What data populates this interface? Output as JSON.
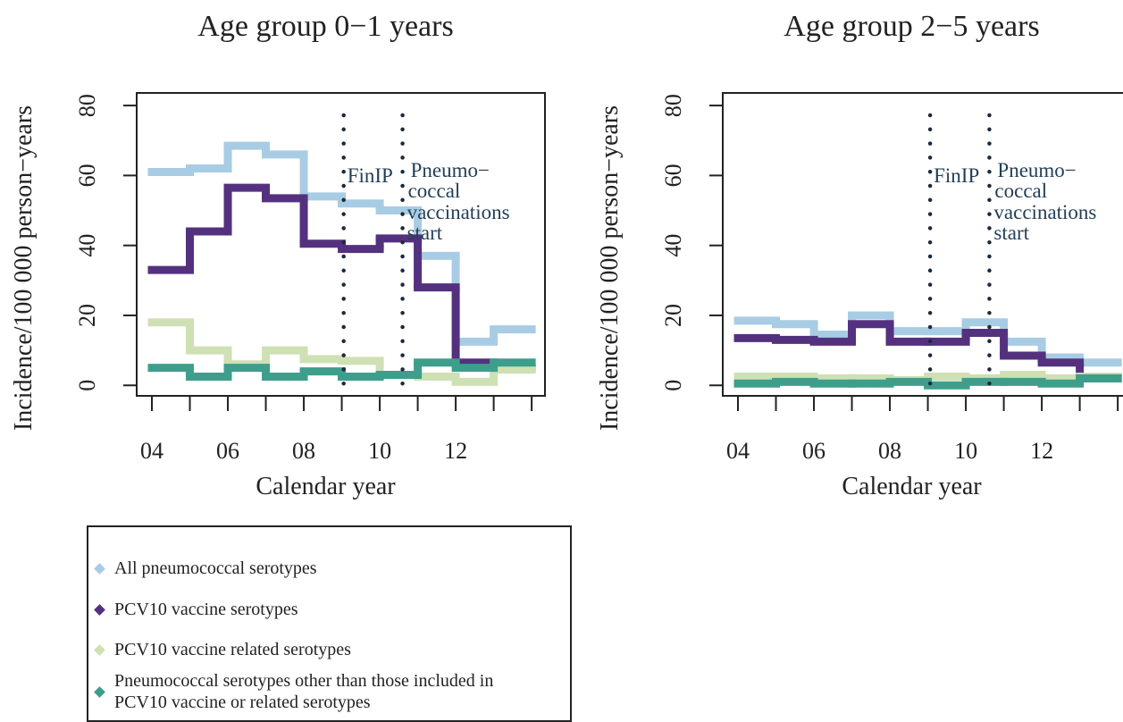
{
  "chart_data": [
    {
      "type": "step",
      "title": "Age group 0−1 years",
      "x_label": "Calendar year",
      "y_label": "Incidence/100 000 person−years",
      "x": [
        2004,
        2005,
        2006,
        2007,
        2008,
        2009,
        2010,
        2011,
        2012,
        2013
      ],
      "series": [
        {
          "name": "All pneumococcal serotypes",
          "color": "#a8cce4",
          "values": [
            61,
            62,
            68.5,
            66,
            54,
            52,
            50,
            37,
            12.5,
            16
          ]
        },
        {
          "name": "PCV10 vaccine serotypes",
          "color": "#54317f",
          "values": [
            33,
            44,
            56.5,
            53.5,
            40.5,
            39,
            42,
            28,
            6.5,
            5
          ]
        },
        {
          "name": "PCV10 vaccine related serotypes",
          "color": "#cfe0b4",
          "values": [
            18,
            10,
            6,
            10,
            7.5,
            7,
            3,
            2.5,
            1,
            4.5
          ]
        },
        {
          "name": "Pneumococcal serotypes other than those included in PCV10 vaccine or related serotypes",
          "color": "#3e9e8c",
          "values": [
            5,
            2.5,
            5,
            2.5,
            4,
            2.5,
            3,
            6.5,
            5,
            6.5
          ]
        }
      ],
      "xlim": [
        2003.6,
        2014.35
      ],
      "ylim": [
        -3,
        83.6
      ],
      "xticks": [
        {
          "value": 2004,
          "label": "04"
        },
        {
          "value": 2006,
          "label": "06"
        },
        {
          "value": 2008,
          "label": "08"
        },
        {
          "value": 2010,
          "label": "10"
        },
        {
          "value": 2012,
          "label": "12"
        }
      ],
      "xminorticks": [
        2005,
        2007,
        2009,
        2011,
        2013,
        2014
      ],
      "yticks": [
        0,
        20,
        40,
        60,
        80
      ],
      "vlines": [
        2009.05,
        2010.6
      ],
      "annotations": [
        "FinIP",
        "Pneumo−",
        "coccal",
        "vaccinations",
        "start"
      ]
    },
    {
      "type": "step",
      "title": "Age group 2−5 years",
      "x_label": "Calendar year",
      "y_label": "Incidence/100 000 person−years",
      "x": [
        2004,
        2005,
        2006,
        2007,
        2008,
        2009,
        2010,
        2011,
        2012,
        2013
      ],
      "series": [
        {
          "name": "All pneumococcal serotypes",
          "color": "#a8cce4",
          "values": [
            18.5,
            17.5,
            14.5,
            20,
            15.5,
            15.5,
            18,
            12.5,
            8,
            6.5
          ]
        },
        {
          "name": "PCV10 vaccine serotypes",
          "color": "#54317f",
          "values": [
            13.5,
            13,
            12.5,
            17.5,
            12.5,
            12.5,
            15,
            8.5,
            6.5,
            2
          ]
        },
        {
          "name": "PCV10 vaccine related serotypes",
          "color": "#cfe0b4",
          "values": [
            2.5,
            2.5,
            2,
            2,
            1.5,
            2.5,
            2,
            3,
            2,
            2.5
          ]
        },
        {
          "name": "Pneumococcal serotypes other than those included in PCV10 vaccine or related serotypes",
          "color": "#3e9e8c",
          "values": [
            0.5,
            1,
            0.5,
            0.5,
            1,
            0,
            1,
            1,
            0.5,
            2
          ]
        }
      ],
      "xlim": [
        2003.6,
        2014.35
      ],
      "ylim": [
        -3,
        83.6
      ],
      "xticks": [
        {
          "value": 2004,
          "label": "04"
        },
        {
          "value": 2006,
          "label": "06"
        },
        {
          "value": 2008,
          "label": "08"
        },
        {
          "value": 2010,
          "label": "10"
        },
        {
          "value": 2012,
          "label": "12"
        }
      ],
      "xminorticks": [
        2005,
        2007,
        2009,
        2011,
        2013,
        2014
      ],
      "yticks": [
        0,
        20,
        40,
        60,
        80
      ],
      "vlines": [
        2009.06,
        2010.62
      ],
      "annotations": [
        "FinIP",
        "Pneumo−",
        "coccal",
        "vaccinations",
        "start"
      ]
    }
  ]
}
